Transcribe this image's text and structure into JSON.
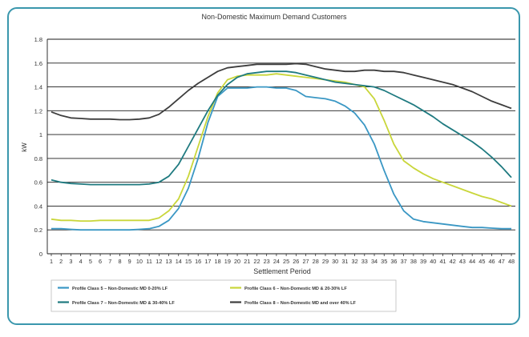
{
  "chart_data": {
    "type": "line",
    "title": "Non-Domestic Maximum Demand Customers",
    "xlabel": "Settlement Period",
    "ylabel": "kW",
    "ylim": [
      0,
      1.8
    ],
    "yticks": [
      "0",
      "0.2",
      "0.4",
      "0.6",
      "0.8",
      "1",
      "1.2",
      "1.4",
      "1.6",
      "1.8"
    ],
    "x": [
      1,
      2,
      3,
      4,
      5,
      6,
      7,
      8,
      9,
      10,
      11,
      12,
      13,
      14,
      15,
      16,
      17,
      18,
      19,
      20,
      21,
      22,
      23,
      24,
      25,
      26,
      27,
      28,
      29,
      30,
      31,
      32,
      33,
      34,
      35,
      36,
      37,
      38,
      39,
      40,
      41,
      42,
      43,
      44,
      45,
      46,
      47,
      48
    ],
    "grid": true,
    "legend_position": "bottom",
    "series": [
      {
        "name": "Profile Class 5 – Non-Domestic MD 0-20% LF",
        "color": "#3a97c4",
        "values": [
          0.21,
          0.21,
          0.205,
          0.2,
          0.2,
          0.2,
          0.2,
          0.2,
          0.2,
          0.205,
          0.21,
          0.23,
          0.28,
          0.38,
          0.55,
          0.8,
          1.1,
          1.32,
          1.39,
          1.39,
          1.39,
          1.4,
          1.4,
          1.39,
          1.39,
          1.37,
          1.32,
          1.31,
          1.3,
          1.28,
          1.24,
          1.18,
          1.08,
          0.92,
          0.7,
          0.5,
          0.36,
          0.29,
          0.27,
          0.26,
          0.25,
          0.24,
          0.23,
          0.22,
          0.22,
          0.215,
          0.21,
          0.21
        ]
      },
      {
        "name": "Profile Class 6 – Non-Domestic MD & 20-30% LF",
        "color": "#c9d63a",
        "values": [
          0.29,
          0.28,
          0.28,
          0.275,
          0.275,
          0.28,
          0.28,
          0.28,
          0.28,
          0.28,
          0.28,
          0.3,
          0.36,
          0.46,
          0.65,
          0.9,
          1.15,
          1.35,
          1.46,
          1.49,
          1.5,
          1.5,
          1.5,
          1.51,
          1.5,
          1.49,
          1.48,
          1.47,
          1.46,
          1.45,
          1.44,
          1.42,
          1.4,
          1.3,
          1.12,
          0.92,
          0.78,
          0.72,
          0.67,
          0.63,
          0.6,
          0.57,
          0.54,
          0.51,
          0.48,
          0.46,
          0.43,
          0.4
        ]
      },
      {
        "name": "Profile Class 7 – Non-Domestic MD & 30-40% LF",
        "color": "#1f7a80",
        "values": [
          0.62,
          0.6,
          0.59,
          0.585,
          0.58,
          0.58,
          0.58,
          0.58,
          0.58,
          0.58,
          0.585,
          0.6,
          0.65,
          0.75,
          0.9,
          1.05,
          1.2,
          1.33,
          1.42,
          1.48,
          1.51,
          1.52,
          1.53,
          1.53,
          1.53,
          1.52,
          1.5,
          1.48,
          1.46,
          1.44,
          1.43,
          1.42,
          1.41,
          1.4,
          1.37,
          1.33,
          1.29,
          1.25,
          1.2,
          1.15,
          1.09,
          1.04,
          0.99,
          0.94,
          0.88,
          0.81,
          0.73,
          0.64
        ]
      },
      {
        "name": "Profile Class 8 – Non-Domestic MD and over 40% LF",
        "color": "#3d3d3d",
        "values": [
          1.19,
          1.16,
          1.14,
          1.135,
          1.13,
          1.13,
          1.13,
          1.125,
          1.125,
          1.13,
          1.14,
          1.17,
          1.23,
          1.3,
          1.37,
          1.43,
          1.48,
          1.53,
          1.56,
          1.57,
          1.58,
          1.59,
          1.59,
          1.59,
          1.59,
          1.595,
          1.59,
          1.57,
          1.55,
          1.54,
          1.53,
          1.53,
          1.54,
          1.54,
          1.53,
          1.53,
          1.52,
          1.5,
          1.48,
          1.46,
          1.44,
          1.42,
          1.39,
          1.36,
          1.32,
          1.28,
          1.25,
          1.22
        ]
      }
    ]
  }
}
